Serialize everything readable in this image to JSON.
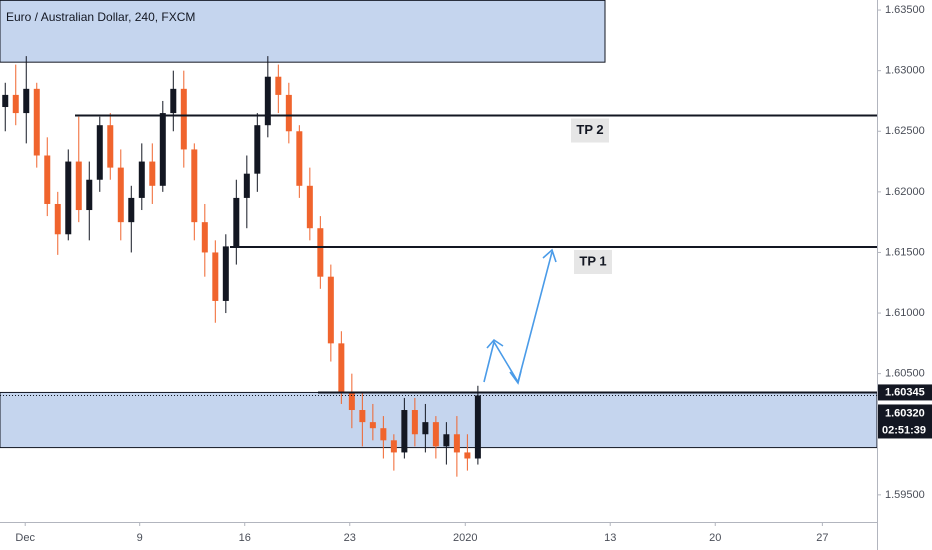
{
  "chart_data": {
    "type": "candlestick",
    "title": "Euro / Australian Dollar, 240, FXCM",
    "up_color": "#131722",
    "down_color": "#f0642d",
    "x": [
      0,
      1,
      2,
      3,
      4,
      5,
      6,
      7,
      8,
      9,
      10,
      11,
      12,
      13,
      14,
      15,
      16,
      17,
      18,
      19,
      20,
      21,
      22,
      23,
      24,
      25,
      26,
      27,
      28,
      29,
      30,
      31,
      32,
      33,
      34,
      35,
      36,
      37,
      38,
      39,
      40,
      41,
      42,
      43,
      44,
      45
    ],
    "open": [
      1.627,
      1.628,
      1.6265,
      1.6285,
      1.623,
      1.619,
      1.6165,
      1.6225,
      1.6185,
      1.621,
      1.6255,
      1.622,
      1.6175,
      1.6195,
      1.6225,
      1.6205,
      1.6265,
      1.6285,
      1.6235,
      1.6175,
      1.615,
      1.611,
      1.6155,
      1.6195,
      1.6215,
      1.6255,
      1.6295,
      1.628,
      1.625,
      1.6205,
      1.617,
      1.613,
      1.6075,
      1.6035,
      1.602,
      1.601,
      1.6005,
      1.5995,
      1.5985,
      1.602,
      1.6,
      1.601,
      1.599,
      1.6,
      1.5985,
      1.598
    ],
    "high": [
      1.629,
      1.6305,
      1.6312,
      1.629,
      1.6245,
      1.62,
      1.6235,
      1.6262,
      1.6225,
      1.6262,
      1.6265,
      1.6235,
      1.6205,
      1.624,
      1.624,
      1.6275,
      1.63,
      1.63,
      1.624,
      1.619,
      1.616,
      1.6165,
      1.621,
      1.623,
      1.6265,
      1.6312,
      1.6305,
      1.629,
      1.6255,
      1.622,
      1.618,
      1.614,
      1.6085,
      1.605,
      1.6035,
      1.6025,
      1.6015,
      1.6,
      1.603,
      1.603,
      1.6025,
      1.6015,
      1.601,
      1.6015,
      1.6,
      1.604
    ],
    "low": [
      1.625,
      1.6255,
      1.624,
      1.622,
      1.618,
      1.6148,
      1.616,
      1.6175,
      1.616,
      1.62,
      1.621,
      1.616,
      1.615,
      1.6185,
      1.619,
      1.62,
      1.625,
      1.622,
      1.616,
      1.613,
      1.6092,
      1.61,
      1.614,
      1.617,
      1.62,
      1.6245,
      1.6265,
      1.624,
      1.6195,
      1.616,
      1.612,
      1.606,
      1.6025,
      1.6005,
      1.599,
      1.5995,
      1.598,
      1.597,
      1.598,
      1.599,
      1.5985,
      1.598,
      1.5975,
      1.5965,
      1.597,
      1.5975
    ],
    "close": [
      1.628,
      1.6265,
      1.6285,
      1.623,
      1.619,
      1.6165,
      1.6225,
      1.6185,
      1.621,
      1.6255,
      1.622,
      1.6175,
      1.6195,
      1.6225,
      1.6205,
      1.6265,
      1.6285,
      1.6235,
      1.6175,
      1.615,
      1.611,
      1.6155,
      1.6195,
      1.6215,
      1.6255,
      1.6295,
      1.628,
      1.625,
      1.6205,
      1.617,
      1.613,
      1.6075,
      1.6035,
      1.602,
      1.601,
      1.6005,
      1.5995,
      1.5985,
      1.602,
      1.6,
      1.601,
      1.599,
      1.6,
      1.5985,
      1.598,
      1.6032
    ],
    "xlim": [
      0,
      83.5
    ],
    "xticks": [
      {
        "value": 2.4,
        "label": "Dec"
      },
      {
        "value": 13.3,
        "label": "9"
      },
      {
        "value": 23.3,
        "label": "16"
      },
      {
        "value": 33.3,
        "label": "23"
      },
      {
        "value": 44.3,
        "label": "2020"
      },
      {
        "value": 58.1,
        "label": "13"
      },
      {
        "value": 68.1,
        "label": "20"
      },
      {
        "value": 78.3,
        "label": "27"
      }
    ],
    "ylim": [
      1.59276,
      1.63583
    ],
    "yticks": [
      {
        "value": 1.635,
        "label": "1.63500"
      },
      {
        "value": 1.63,
        "label": "1.63000"
      },
      {
        "value": 1.625,
        "label": "1.62500"
      },
      {
        "value": 1.62,
        "label": "1.62000"
      },
      {
        "value": 1.615,
        "label": "1.61500"
      },
      {
        "value": 1.61,
        "label": "1.61000"
      },
      {
        "value": 1.605,
        "label": "1.60500"
      },
      {
        "value": 1.595,
        "label": "1.59500"
      }
    ],
    "levels": [
      {
        "label": "TP 2",
        "price": 1.6263
      },
      {
        "label": "TP 1",
        "price": 1.61545
      }
    ],
    "zones": [
      {
        "from": 1.5989,
        "to": 1.60345
      },
      {
        "from": 1.6307,
        "to": 1.6358
      }
    ],
    "line_price": {
      "value": 1.60345,
      "label": "1.60345"
    },
    "last_price": {
      "value": 1.6032,
      "label": "1.60320"
    },
    "countdown": "02:51:39"
  }
}
